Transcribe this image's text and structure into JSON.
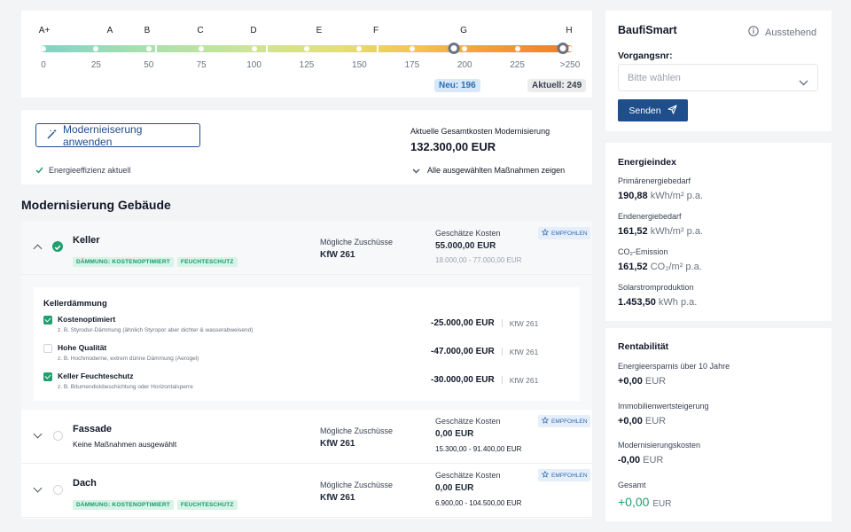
{
  "energy_scale": {
    "classes": [
      "A+",
      "A",
      "B",
      "C",
      "D",
      "E",
      "F",
      "G",
      "H"
    ],
    "ticks": [
      "0",
      "25",
      "50",
      "75",
      "100",
      "125",
      "150",
      "175",
      "200",
      "225",
      ">250"
    ],
    "new_label": "Neu: 196",
    "current_label": "Aktuell: 249",
    "new_value": 196,
    "current_value": 249
  },
  "summary": {
    "apply_button": "Modernieiserung anwenden",
    "efficiency_note": "Energieeffizienz aktuell",
    "total_label": "Aktuelle Gesamtkosten Modernisierung",
    "total_value": "132.300,00 EUR",
    "show_all": "Alle ausgewählten Maßnahmen zeigen"
  },
  "section_title": "Modernisierung Gebäude",
  "sections": [
    {
      "title": "Keller",
      "tags": [
        "DÄMMUNG: KOSTENOPTIMIERT",
        "FEUCHTESCHUTZ"
      ],
      "subsidy_label": "Mögliche Zuschüsse",
      "subsidy_value": "KfW 261",
      "cost_label": "Geschätze Kosten",
      "cost_value": "55.000,00 EUR",
      "cost_range": "18.000,00 - 77.000,00 EUR",
      "badge": "EMPFOHLEN"
    },
    {
      "title": "Fassade",
      "note": "Keine Maßnahmen ausgewählt",
      "subsidy_label": "Mögliche Zuschüsse",
      "subsidy_value": "KfW 261",
      "cost_label": "Geschätze Kosten",
      "cost_value": "0,00 EUR",
      "cost_range": "15.300,00 - 91.400,00 EUR",
      "badge": "EMPFOHLEN"
    },
    {
      "title": "Dach",
      "tags": [
        "DÄMMUNG: KOSTENOPTIMIERT",
        "FEUCHTESCHUTZ"
      ],
      "subsidy_label": "Mögliche Zuschüsse",
      "subsidy_value": "KfW 261",
      "cost_label": "Geschätze Kosten",
      "cost_value": "0,00 EUR",
      "cost_range": "6.900,00 - 104.500,00 EUR",
      "badge": "EMPFOHLEN"
    }
  ],
  "keller_detail": {
    "title": "Kellerdämmung",
    "options": [
      {
        "label": "Kostenoptimiert",
        "desc": "z. B. Styrodur-Dämmung (ähnlich Styropor aber dichter & wasserabweisend)",
        "value": "-25.000,00 EUR",
        "kfw": "KfW 261",
        "checked": true
      },
      {
        "label": "Hohe Qualität",
        "desc": "z. B. Hochmoderne, extrem dünne Dämmung (Aerogel)",
        "value": "-47.000,00 EUR",
        "kfw": "KfW 261",
        "checked": false
      },
      {
        "label": "Keller Feuchteschutz",
        "desc": "z. B. Bitumendickbeschichtung oder Horizontalsperre",
        "value": "-30.000,00 EUR",
        "kfw": "KfW 261",
        "checked": true
      }
    ]
  },
  "baufi": {
    "title": "BaufiSmart",
    "status": "Ausstehend",
    "vorgang_label": "Vorgangsnr:",
    "select_placeholder": "Bitte wählen",
    "send_button": "Senden"
  },
  "energieindex": {
    "title": "Energieindex",
    "items": [
      {
        "label": "Primärenergiebedarf",
        "value": "190,88",
        "unit": "kWh/m² p.a."
      },
      {
        "label": "Endenergiebedarf",
        "value": "161,52",
        "unit": "kWh/m² p.a."
      },
      {
        "label": "CO₂-Emission",
        "value": "161,52",
        "unit": "CO₂/m² p.a."
      },
      {
        "label": "Solarstromproduktion",
        "value": "1.453,50",
        "unit": "kWh p.a."
      }
    ]
  },
  "rentabilitaet": {
    "title": "Rentabilität",
    "items": [
      {
        "label": "Energieersparnis über 10 Jahre",
        "value": "+0,00",
        "unit": "EUR"
      },
      {
        "label": "Immobilienwertsteigerung",
        "value": "+0,00",
        "unit": "EUR"
      },
      {
        "label": "Modernisierungskosten",
        "value": "-0,00",
        "unit": "EUR"
      },
      {
        "label": "Gesamt",
        "value": "+0,00",
        "unit": "EUR"
      }
    ]
  },
  "colors": {
    "accent": "#1e4e8c",
    "success": "#1fa06f",
    "total_green": "#1fa06f"
  }
}
